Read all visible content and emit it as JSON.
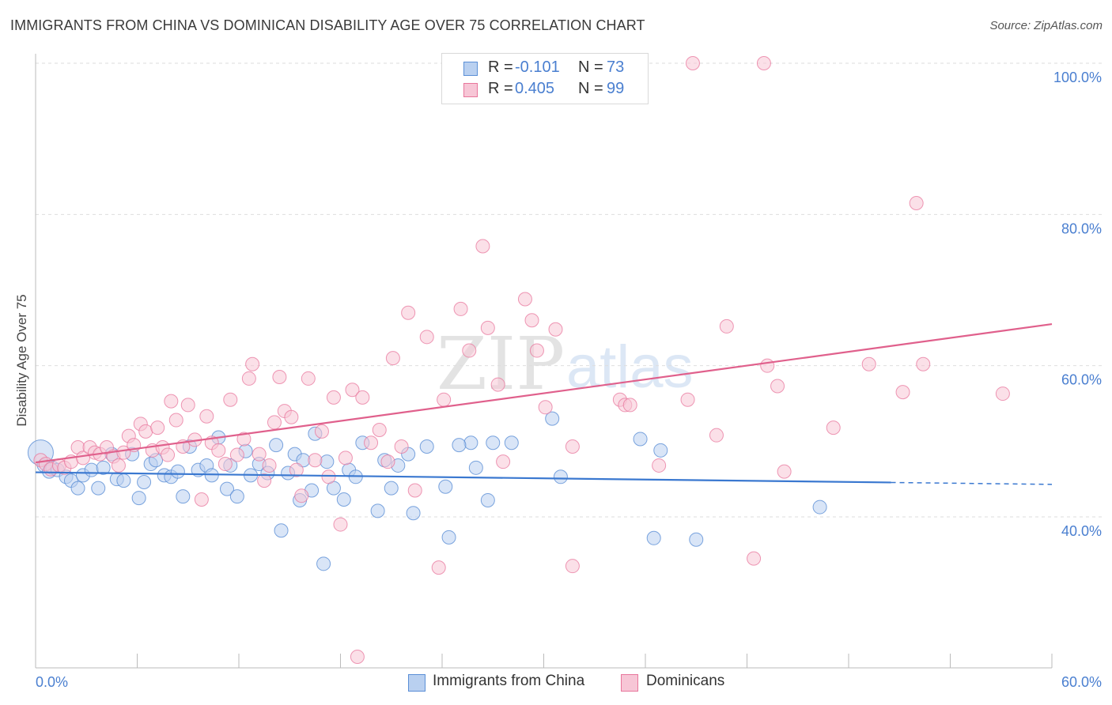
{
  "title": "IMMIGRANTS FROM CHINA VS DOMINICAN DISABILITY AGE OVER 75 CORRELATION CHART",
  "source": "Source: ZipAtlas.com",
  "watermark": {
    "zip": "ZIP",
    "atlas": "atlas"
  },
  "colors": {
    "china": "#5b8fd6",
    "china_fill": "#b9d0f0",
    "dominican": "#e8769c",
    "dominican_fill": "#f7c6d6",
    "axis_text": "#4a7fd0",
    "grid": "#dddddd"
  },
  "legend": {
    "china": {
      "r_label": "R =",
      "r_value": "-0.101",
      "n_label": "N =",
      "n_value": "73"
    },
    "dominican": {
      "r_label": "R =",
      "r_value": "0.405",
      "n_label": "N =",
      "n_value": "99"
    }
  },
  "bottom_legend": {
    "china": "Immigrants from China",
    "dominican": "Dominicans"
  },
  "chart_data": {
    "type": "scatter",
    "title": "IMMIGRANTS FROM CHINA VS DOMINICAN DISABILITY AGE OVER 75 CORRELATION CHART",
    "xlabel": "",
    "ylabel": "Disability Age Over 75",
    "xlim": [
      0,
      60
    ],
    "ylim": [
      20,
      102
    ],
    "x_tick_labels": [
      "0.0%",
      "60.0%"
    ],
    "y_ticks": [
      40,
      60,
      80,
      100
    ],
    "y_tick_labels": [
      "40.0%",
      "60.0%",
      "80.0%",
      "100.0%"
    ],
    "grid": true,
    "legend_position": "top-center",
    "series": [
      {
        "name": "Immigrants from China",
        "color": "#5b8fd6",
        "trend": {
          "x0": 0,
          "y0": 45.9,
          "x1": 60,
          "y1": 44.3,
          "solid_until": 50.5
        },
        "points": [
          [
            0.3,
            48.5
          ],
          [
            0.5,
            46.8
          ],
          [
            0.8,
            46.0
          ],
          [
            1.0,
            46.5
          ],
          [
            1.3,
            46.2
          ],
          [
            1.8,
            45.3
          ],
          [
            2.1,
            44.8
          ],
          [
            2.5,
            43.8
          ],
          [
            2.8,
            45.5
          ],
          [
            3.3,
            46.2
          ],
          [
            3.7,
            43.8
          ],
          [
            4.0,
            46.5
          ],
          [
            4.5,
            48.3
          ],
          [
            4.8,
            45.0
          ],
          [
            5.2,
            44.8
          ],
          [
            5.7,
            48.3
          ],
          [
            6.1,
            42.5
          ],
          [
            6.4,
            44.6
          ],
          [
            6.8,
            47.0
          ],
          [
            7.1,
            47.5
          ],
          [
            7.6,
            45.5
          ],
          [
            8.0,
            45.3
          ],
          [
            8.4,
            46.0
          ],
          [
            8.7,
            42.7
          ],
          [
            9.1,
            49.3
          ],
          [
            9.6,
            46.2
          ],
          [
            10.1,
            46.8
          ],
          [
            10.4,
            45.5
          ],
          [
            10.8,
            50.5
          ],
          [
            11.3,
            43.7
          ],
          [
            11.5,
            46.8
          ],
          [
            11.9,
            42.7
          ],
          [
            12.4,
            48.7
          ],
          [
            12.7,
            45.5
          ],
          [
            13.2,
            47.0
          ],
          [
            13.7,
            45.8
          ],
          [
            14.2,
            49.5
          ],
          [
            14.5,
            38.2
          ],
          [
            14.9,
            45.8
          ],
          [
            15.3,
            48.3
          ],
          [
            15.6,
            42.2
          ],
          [
            15.8,
            47.5
          ],
          [
            16.3,
            43.5
          ],
          [
            16.5,
            51.0
          ],
          [
            17.0,
            33.8
          ],
          [
            17.2,
            47.3
          ],
          [
            17.6,
            43.8
          ],
          [
            18.2,
            42.3
          ],
          [
            18.5,
            46.2
          ],
          [
            18.9,
            45.3
          ],
          [
            19.3,
            49.8
          ],
          [
            20.2,
            40.8
          ],
          [
            20.6,
            47.5
          ],
          [
            21.0,
            43.8
          ],
          [
            21.4,
            46.8
          ],
          [
            22.0,
            48.3
          ],
          [
            22.3,
            40.5
          ],
          [
            23.1,
            49.3
          ],
          [
            24.2,
            44.0
          ],
          [
            24.4,
            37.3
          ],
          [
            25.7,
            49.8
          ],
          [
            26.0,
            46.5
          ],
          [
            26.7,
            42.2
          ],
          [
            28.1,
            49.8
          ],
          [
            30.5,
            53.0
          ],
          [
            31.0,
            45.3
          ],
          [
            35.7,
            50.3
          ],
          [
            36.5,
            37.2
          ],
          [
            36.9,
            48.8
          ],
          [
            39.0,
            37.0
          ],
          [
            46.3,
            41.3
          ],
          [
            27.0,
            49.8
          ],
          [
            25.0,
            49.5
          ]
        ]
      },
      {
        "name": "Dominicans",
        "color": "#e8769c",
        "trend": {
          "x0": 0,
          "y0": 47.2,
          "x1": 60,
          "y1": 65.5
        },
        "points": [
          [
            0.3,
            47.5
          ],
          [
            0.6,
            47.0
          ],
          [
            0.9,
            46.3
          ],
          [
            1.4,
            46.8
          ],
          [
            1.7,
            46.5
          ],
          [
            2.1,
            47.3
          ],
          [
            2.5,
            49.2
          ],
          [
            2.8,
            47.8
          ],
          [
            3.2,
            49.2
          ],
          [
            3.5,
            48.5
          ],
          [
            3.8,
            48.3
          ],
          [
            4.2,
            49.2
          ],
          [
            4.6,
            48.0
          ],
          [
            4.9,
            46.8
          ],
          [
            5.2,
            48.5
          ],
          [
            5.5,
            50.7
          ],
          [
            5.8,
            49.5
          ],
          [
            6.2,
            52.3
          ],
          [
            6.5,
            51.3
          ],
          [
            6.9,
            48.8
          ],
          [
            7.2,
            51.8
          ],
          [
            7.5,
            49.2
          ],
          [
            7.8,
            48.2
          ],
          [
            8.0,
            55.3
          ],
          [
            8.3,
            52.8
          ],
          [
            8.7,
            49.3
          ],
          [
            9.0,
            54.8
          ],
          [
            9.4,
            50.2
          ],
          [
            9.8,
            42.3
          ],
          [
            10.1,
            53.3
          ],
          [
            10.4,
            49.8
          ],
          [
            10.8,
            48.8
          ],
          [
            11.2,
            47.0
          ],
          [
            11.5,
            55.5
          ],
          [
            11.9,
            48.2
          ],
          [
            12.3,
            50.3
          ],
          [
            12.6,
            58.3
          ],
          [
            12.8,
            60.2
          ],
          [
            13.2,
            48.3
          ],
          [
            13.5,
            44.8
          ],
          [
            13.8,
            46.8
          ],
          [
            14.1,
            52.5
          ],
          [
            14.4,
            58.5
          ],
          [
            14.7,
            54.0
          ],
          [
            15.1,
            53.2
          ],
          [
            15.4,
            46.2
          ],
          [
            15.7,
            42.8
          ],
          [
            16.1,
            58.3
          ],
          [
            16.5,
            47.5
          ],
          [
            16.9,
            51.3
          ],
          [
            17.3,
            45.3
          ],
          [
            17.6,
            55.8
          ],
          [
            18.0,
            39.0
          ],
          [
            18.3,
            47.8
          ],
          [
            18.7,
            56.8
          ],
          [
            19.0,
            21.5
          ],
          [
            19.3,
            55.8
          ],
          [
            19.8,
            49.8
          ],
          [
            20.3,
            51.5
          ],
          [
            20.8,
            47.3
          ],
          [
            21.1,
            61.0
          ],
          [
            21.6,
            49.3
          ],
          [
            22.0,
            67.0
          ],
          [
            22.4,
            43.5
          ],
          [
            23.1,
            63.8
          ],
          [
            23.8,
            33.3
          ],
          [
            24.1,
            55.5
          ],
          [
            25.1,
            67.5
          ],
          [
            25.6,
            62.0
          ],
          [
            26.4,
            75.8
          ],
          [
            26.7,
            65.0
          ],
          [
            27.3,
            57.5
          ],
          [
            27.6,
            47.3
          ],
          [
            28.9,
            68.8
          ],
          [
            29.3,
            66.0
          ],
          [
            29.6,
            62.0
          ],
          [
            30.1,
            54.5
          ],
          [
            30.7,
            64.8
          ],
          [
            31.7,
            49.3
          ],
          [
            31.7,
            33.5
          ],
          [
            34.5,
            55.5
          ],
          [
            34.8,
            54.8
          ],
          [
            35.1,
            54.8
          ],
          [
            36.8,
            46.8
          ],
          [
            38.5,
            55.5
          ],
          [
            38.8,
            100.0
          ],
          [
            40.2,
            50.8
          ],
          [
            40.8,
            65.2
          ],
          [
            42.4,
            34.5
          ],
          [
            43.0,
            100.0
          ],
          [
            43.2,
            60.0
          ],
          [
            43.8,
            57.3
          ],
          [
            44.2,
            46.0
          ],
          [
            47.1,
            51.8
          ],
          [
            49.2,
            60.2
          ],
          [
            51.2,
            56.5
          ],
          [
            52.0,
            81.5
          ],
          [
            52.4,
            60.2
          ],
          [
            57.1,
            56.3
          ]
        ]
      }
    ]
  }
}
